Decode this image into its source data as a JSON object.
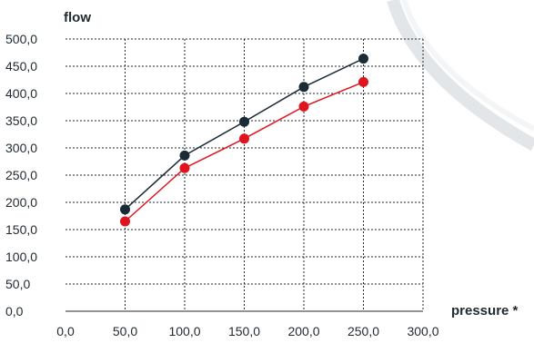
{
  "chart_data": {
    "type": "line",
    "xlabel": "pressure *",
    "ylabel": "flow",
    "xlim": [
      0,
      300
    ],
    "ylim": [
      0,
      500
    ],
    "grid": true,
    "x_ticks": [
      "0,0",
      "50,0",
      "100,0",
      "150,0",
      "200,0",
      "250,0",
      "300,0"
    ],
    "y_ticks": [
      "0,0",
      "50,0",
      "100,0",
      "150,0",
      "200,0",
      "250,0",
      "300,0",
      "350,0",
      "400,0",
      "450,0",
      "500,0"
    ],
    "x": [
      50,
      100,
      150,
      200,
      250
    ],
    "series": [
      {
        "values": [
          187,
          286,
          348,
          412,
          464
        ],
        "color": "#1b2b36"
      },
      {
        "values": [
          165,
          263,
          317,
          376,
          421
        ],
        "color": "#e0141e"
      }
    ]
  },
  "colors": {
    "grid": "#1f2a30",
    "decor_ring": "#e3e6e8"
  }
}
